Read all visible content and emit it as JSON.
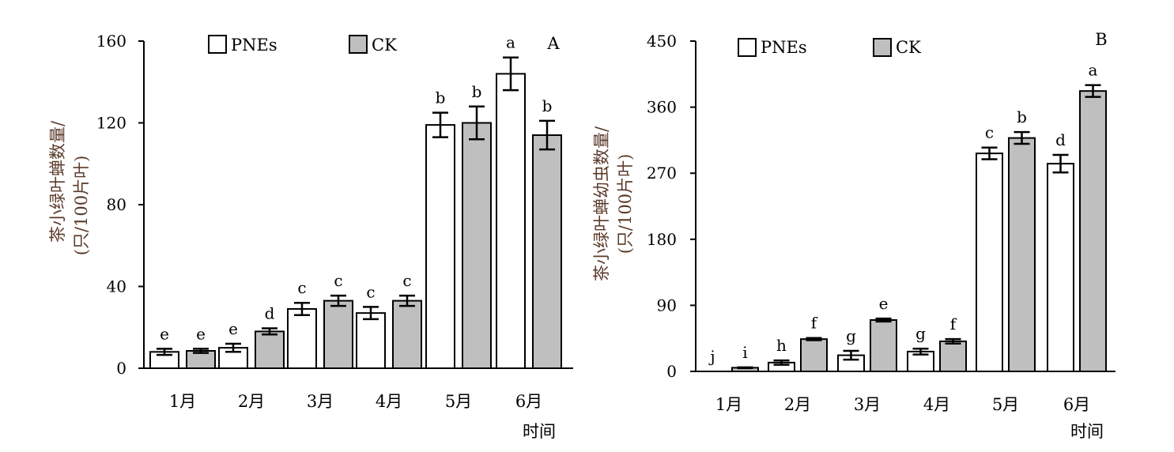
{
  "chart_data": [
    {
      "type": "bar",
      "panel_label": "A",
      "ylabel_lines": [
        "茶小绿叶蝉数量/",
        "(只/100片叶)"
      ],
      "xlabel": "时间",
      "categories": [
        "1月",
        "2月",
        "3月",
        "4月",
        "5月",
        "6月"
      ],
      "ylim": [
        0,
        160
      ],
      "yticks": [
        0,
        40,
        80,
        120,
        160
      ],
      "legend_position": "top",
      "series": [
        {
          "name": "PNEs",
          "fill": "#ffffff",
          "values": [
            8,
            10,
            29,
            27,
            119,
            144
          ],
          "errors": [
            1.5,
            2,
            3,
            3,
            6,
            8
          ],
          "labels": [
            "e",
            "e",
            "c",
            "c",
            "b",
            "a"
          ]
        },
        {
          "name": "CK",
          "fill": "#bfbfbf",
          "values": [
            8.5,
            18,
            33,
            33,
            120,
            114
          ],
          "errors": [
            1,
            1.5,
            2.5,
            2.5,
            8,
            7
          ],
          "labels": [
            "e",
            "d",
            "c",
            "c",
            "b",
            "b"
          ]
        }
      ]
    },
    {
      "type": "bar",
      "panel_label": "B",
      "ylabel_lines": [
        "茶小绿叶蝉幼虫数量/",
        "(只/100片叶)"
      ],
      "xlabel": "时间",
      "categories": [
        "1月",
        "2月",
        "3月",
        "4月",
        "5月",
        "6月"
      ],
      "ylim": [
        0,
        450
      ],
      "yticks": [
        0,
        90,
        180,
        270,
        360,
        450
      ],
      "legend_position": "top",
      "series": [
        {
          "name": "PNEs",
          "fill": "#ffffff",
          "values": [
            0,
            12,
            22,
            27,
            297,
            283
          ],
          "errors": [
            0,
            3,
            6,
            4,
            8,
            12
          ],
          "labels": [
            "j",
            "h",
            "g",
            "g",
            "c",
            "d"
          ]
        },
        {
          "name": "CK",
          "fill": "#bfbfbf",
          "values": [
            5,
            44,
            70,
            41,
            318,
            382
          ],
          "errors": [
            0.5,
            1.5,
            2,
            3,
            8,
            8
          ],
          "labels": [
            "i",
            "f",
            "e",
            "f",
            "b",
            "a"
          ]
        }
      ]
    }
  ]
}
